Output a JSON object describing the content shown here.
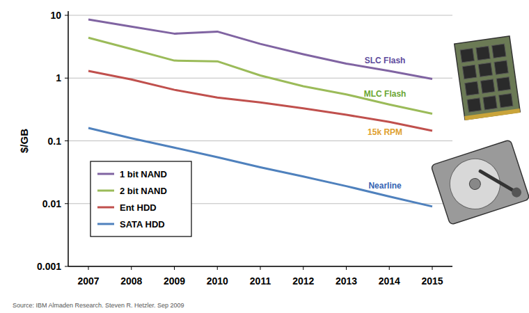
{
  "chart_data": {
    "type": "line",
    "y_label": "$/GB",
    "source": "Source:  IBM Almaden Research.  Steven R. Hetzler.  Sep 2009",
    "categories": [
      "2007",
      "2008",
      "2009",
      "2010",
      "2011",
      "2012",
      "2013",
      "2014",
      "2015"
    ],
    "series": [
      {
        "name": "1 bit NAND",
        "color": "#8064a2",
        "values": [
          8.6,
          6.6,
          5.1,
          5.5,
          3.5,
          2.4,
          1.7,
          1.3,
          0.97
        ]
      },
      {
        "name": "2 bit NAND",
        "color": "#9bbb59",
        "values": [
          4.4,
          2.9,
          1.9,
          1.85,
          1.1,
          0.74,
          0.55,
          0.38,
          0.27
        ]
      },
      {
        "name": "Ent HDD",
        "color": "#c0504d",
        "values": [
          1.3,
          0.95,
          0.65,
          0.49,
          0.41,
          0.33,
          0.26,
          0.2,
          0.145
        ]
      },
      {
        "name": "SATA HDD",
        "color": "#4f81bd",
        "values": [
          0.16,
          0.11,
          0.078,
          0.055,
          0.038,
          0.027,
          0.019,
          0.013,
          0.009
        ]
      }
    ],
    "annotations": [
      {
        "text": "SLC Flash",
        "color": "#5e4a9c"
      },
      {
        "text": "MLC Flash",
        "color": "#6aa632"
      },
      {
        "text": "15k RPM",
        "color": "#e0a030"
      },
      {
        "text": "Nearline",
        "color": "#3564b4"
      }
    ],
    "ylim": [
      0.001,
      10
    ],
    "yticks": [
      0.001,
      0.01,
      0.1,
      1,
      10
    ],
    "log": "y",
    "grid": true,
    "legend": "lower left"
  }
}
